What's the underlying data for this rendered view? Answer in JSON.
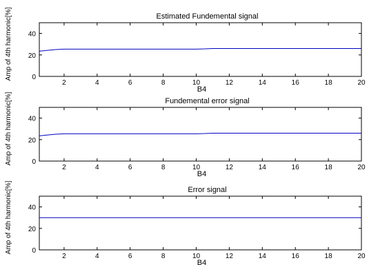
{
  "chart_data": [
    {
      "type": "line",
      "title": "Estimated Fundemental signal",
      "xlabel": "B4",
      "ylabel": "Amp of 4th harmonic[%]",
      "xlim": [
        0.5,
        20
      ],
      "ylim": [
        0,
        50
      ],
      "xticks": [
        2,
        4,
        6,
        8,
        10,
        12,
        14,
        16,
        18,
        20
      ],
      "yticks": [
        0,
        20,
        40
      ],
      "grid": false,
      "line_color": "#0000c0",
      "series": [
        {
          "x": [
            0.5,
            1,
            1.5,
            2,
            4,
            6,
            8,
            10,
            10.5,
            11,
            12,
            14,
            16,
            18,
            20
          ],
          "y": [
            23.5,
            24.3,
            25.0,
            25.4,
            25.4,
            25.4,
            25.4,
            25.4,
            25.6,
            26.0,
            26.0,
            26.0,
            26.0,
            26.0,
            26.0
          ]
        }
      ]
    },
    {
      "type": "line",
      "title": "Fundemental error signal",
      "xlabel": "B4",
      "ylabel": "Amp of 4th harmonic[%]",
      "xlim": [
        0.5,
        20
      ],
      "ylim": [
        0,
        50
      ],
      "xticks": [
        2,
        4,
        6,
        8,
        10,
        12,
        14,
        16,
        18,
        20
      ],
      "yticks": [
        0,
        20,
        40
      ],
      "grid": false,
      "line_color": "#0000c0",
      "series": [
        {
          "x": [
            0.5,
            1,
            1.5,
            2,
            4,
            6,
            8,
            10,
            10.5,
            11,
            12,
            14,
            16,
            18,
            20
          ],
          "y": [
            23.5,
            24.3,
            25.0,
            25.4,
            25.4,
            25.4,
            25.4,
            25.4,
            25.6,
            26.0,
            26.0,
            26.0,
            26.0,
            26.0,
            26.0
          ]
        }
      ]
    },
    {
      "type": "line",
      "title": "Error signal",
      "xlabel": "B4",
      "ylabel": "Amp of 4th harmonic[%]",
      "xlim": [
        0.5,
        20
      ],
      "ylim": [
        0,
        50
      ],
      "xticks": [
        2,
        4,
        6,
        8,
        10,
        12,
        14,
        16,
        18,
        20
      ],
      "yticks": [
        0,
        20,
        40
      ],
      "grid": false,
      "line_color": "#0000c0",
      "series": [
        {
          "x": [
            0.5,
            20
          ],
          "y": [
            30,
            30
          ]
        }
      ]
    }
  ]
}
